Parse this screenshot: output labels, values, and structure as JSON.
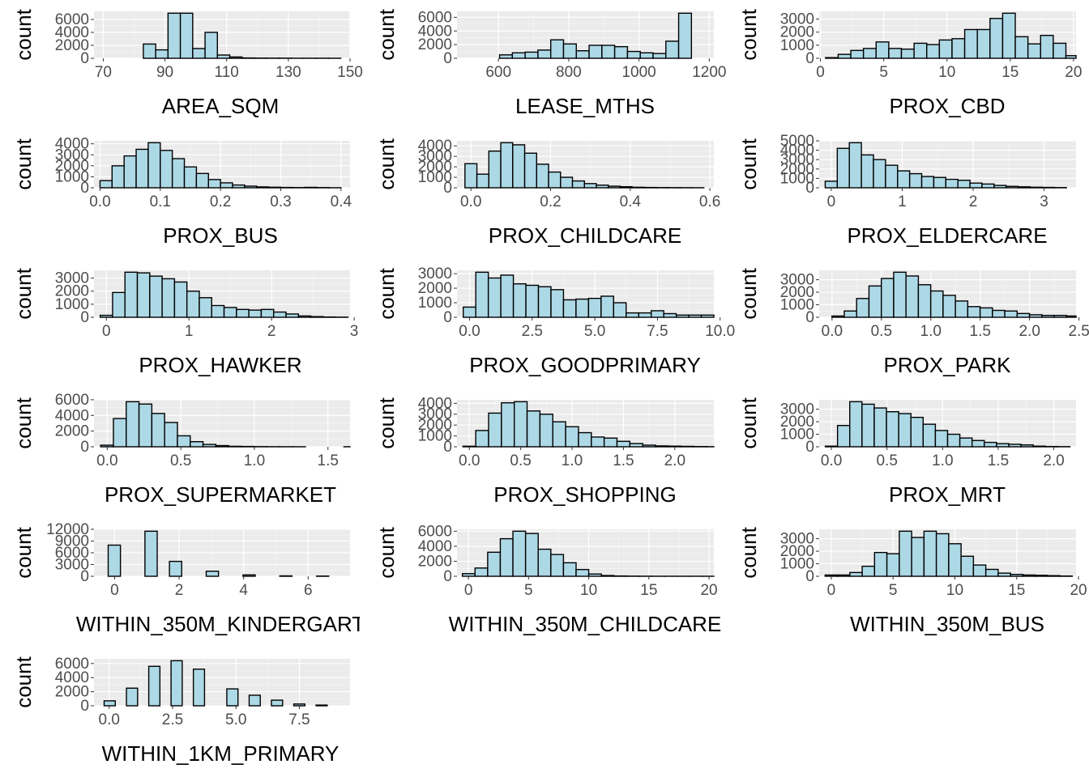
{
  "figure": {
    "background": "#ffffff"
  },
  "style": {
    "panel_bg": "#ebebeb",
    "grid_major": "#ffffff",
    "bar_fill": "#add8e6",
    "bar_stroke": "#000000",
    "tick_color": "#4d4d4d"
  },
  "chart_data": [
    {
      "type": "bar",
      "title": "",
      "xlabel": "AREA_SQM",
      "ylabel": "count",
      "xlim": [
        67,
        150
      ],
      "ylim": [
        0,
        6960
      ],
      "xticks": [
        70,
        90,
        110,
        130,
        150
      ],
      "xtick_labels": [
        "70",
        "90",
        "110",
        "130",
        "150"
      ],
      "yticks": [
        0,
        2000,
        4000,
        6000
      ],
      "ytick_labels": [
        "0",
        "2000",
        "4000",
        "6000"
      ],
      "bin_start": 71,
      "bin_width": 4,
      "values": [
        0,
        0,
        0,
        2200,
        1300,
        6960,
        6960,
        1500,
        4000,
        500,
        200,
        50,
        30,
        20,
        20,
        10,
        10,
        10,
        10
      ]
    },
    {
      "type": "bar",
      "title": "",
      "xlabel": "LEASE_MTHS",
      "ylabel": "count",
      "xlim": [
        482,
        1213
      ],
      "ylim": [
        0,
        6600
      ],
      "xticks": [
        600,
        800,
        1000,
        1200
      ],
      "xtick_labels": [
        "600",
        "800",
        "1000",
        "1200"
      ],
      "yticks": [
        0,
        2000,
        4000,
        6000
      ],
      "ytick_labels": [
        "0",
        "2000",
        "4000",
        "6000"
      ],
      "bin_start": 494,
      "bin_width": 36.4,
      "values": [
        0,
        0,
        0,
        500,
        800,
        900,
        1200,
        2700,
        2100,
        1100,
        1900,
        1900,
        1700,
        1000,
        800,
        700,
        2500,
        6600
      ]
    },
    {
      "type": "bar",
      "title": "",
      "xlabel": "PROX_CBD",
      "ylabel": "count",
      "xlim": [
        -0.1,
        20.2
      ],
      "ylim": [
        0,
        3450
      ],
      "xticks": [
        0,
        5,
        10,
        15,
        20
      ],
      "xtick_labels": [
        "0",
        "5",
        "10",
        "15",
        "20"
      ],
      "yticks": [
        0,
        1000,
        2000,
        3000
      ],
      "ytick_labels": [
        "0",
        "1000",
        "2000",
        "3000"
      ],
      "bin_start": 0.4,
      "bin_width": 1,
      "values": [
        50,
        300,
        600,
        750,
        1250,
        750,
        700,
        1150,
        1050,
        1400,
        1500,
        2200,
        2200,
        3050,
        3450,
        1650,
        1100,
        1750,
        1150,
        200
      ]
    },
    {
      "type": "bar",
      "title": "",
      "xlabel": "PROX_BUS",
      "ylabel": "count",
      "xlim": [
        -0.01,
        0.415
      ],
      "ylim": [
        0,
        4100
      ],
      "xticks": [
        0.0,
        0.1,
        0.2,
        0.3,
        0.4
      ],
      "xtick_labels": [
        "0.0",
        "0.1",
        "0.2",
        "0.3",
        "0.4"
      ],
      "yticks": [
        0,
        1000,
        2000,
        3000,
        4000
      ],
      "ytick_labels": [
        "0",
        "1000",
        "2000",
        "3000",
        "4000"
      ],
      "bin_start": 0.0,
      "bin_width": 0.02,
      "values": [
        650,
        2000,
        2900,
        3500,
        4100,
        3400,
        2650,
        1900,
        1300,
        750,
        450,
        250,
        150,
        80,
        50,
        30,
        20,
        40,
        20,
        5
      ]
    },
    {
      "type": "bar",
      "title": "",
      "xlabel": "PROX_CHILDCARE",
      "ylabel": "count",
      "xlim": [
        -0.035,
        0.61
      ],
      "ylim": [
        0,
        4300
      ],
      "xticks": [
        0.0,
        0.2,
        0.4,
        0.6
      ],
      "xtick_labels": [
        "0.0",
        "0.2",
        "0.4",
        "0.6"
      ],
      "yticks": [
        0,
        1000,
        2000,
        3000,
        4000
      ],
      "ytick_labels": [
        "0",
        "1000",
        "2000",
        "3000",
        "4000"
      ],
      "bin_start": -0.015,
      "bin_width": 0.03,
      "values": [
        2300,
        1300,
        3500,
        4300,
        4100,
        3300,
        2250,
        1500,
        1000,
        650,
        400,
        250,
        150,
        100,
        50,
        30,
        20,
        15,
        10,
        5
      ]
    },
    {
      "type": "bar",
      "title": "",
      "xlabel": "PROX_ELDERCARE",
      "ylabel": "count",
      "xlim": [
        -0.17,
        3.45
      ],
      "ylim": [
        0,
        4800
      ],
      "xticks": [
        0,
        1,
        2,
        3
      ],
      "xtick_labels": [
        "0",
        "1",
        "2",
        "3"
      ],
      "yticks": [
        0,
        1000,
        2000,
        3000,
        4000,
        5000
      ],
      "ytick_labels": [
        "0",
        "1000",
        "2000",
        "3000",
        "4000",
        "5000"
      ],
      "bin_start": -0.085,
      "bin_width": 0.17,
      "values": [
        700,
        4200,
        4800,
        3500,
        3000,
        2400,
        1800,
        1500,
        1200,
        1100,
        900,
        800,
        500,
        400,
        250,
        150,
        100,
        60,
        40,
        20
      ]
    },
    {
      "type": "bar",
      "title": "",
      "xlabel": "PROX_HAWKER",
      "ylabel": "count",
      "xlim": [
        -0.15,
        2.95
      ],
      "ylim": [
        0,
        3450
      ],
      "xticks": [
        0,
        1,
        2,
        3
      ],
      "xtick_labels": [
        "0",
        "1",
        "2",
        "3"
      ],
      "yticks": [
        0,
        1000,
        2000,
        3000
      ],
      "ytick_labels": [
        "0",
        "1000",
        "2000",
        "3000"
      ],
      "bin_start": -0.075,
      "bin_width": 0.15,
      "values": [
        150,
        1900,
        3450,
        3400,
        3150,
        2950,
        2700,
        2000,
        1500,
        900,
        750,
        600,
        550,
        600,
        400,
        250,
        100,
        50,
        20,
        10
      ]
    },
    {
      "type": "bar",
      "title": "",
      "xlabel": "PROX_GOODPRIMARY",
      "ylabel": "count",
      "xlim": [
        -0.5,
        9.75
      ],
      "ylim": [
        0,
        3100
      ],
      "xticks": [
        0.0,
        2.5,
        5.0,
        7.5,
        10.0
      ],
      "xtick_labels": [
        "0.0",
        "2.5",
        "5.0",
        "7.5",
        "10.0"
      ],
      "bin_start": -0.25,
      "bin_width": 0.5,
      "yticks": [
        0,
        1000,
        2000,
        3000
      ],
      "ytick_labels": [
        "0",
        "1000",
        "2000",
        "3000"
      ],
      "values": [
        700,
        3100,
        2700,
        2900,
        2300,
        2200,
        2100,
        1900,
        1200,
        1250,
        1300,
        1450,
        1000,
        300,
        300,
        450,
        250,
        150,
        150,
        150
      ]
    },
    {
      "type": "bar",
      "title": "",
      "xlabel": "PROX_PARK",
      "ylabel": "count",
      "xlim": [
        -0.13,
        2.47
      ],
      "ylim": [
        0,
        3600
      ],
      "xticks": [
        0.0,
        0.5,
        1.0,
        1.5,
        2.0,
        2.5
      ],
      "xtick_labels": [
        "0.0",
        "0.5",
        "1.0",
        "1.5",
        "2.0",
        "2.5"
      ],
      "yticks": [
        0,
        1000,
        2000,
        3000
      ],
      "ytick_labels": [
        "0",
        "1000",
        "2000",
        "3000"
      ],
      "bin_start": -0.001,
      "bin_width": 0.125,
      "values": [
        100,
        500,
        1500,
        2500,
        3100,
        3600,
        3300,
        2600,
        2100,
        1750,
        1300,
        850,
        750,
        550,
        500,
        300,
        200,
        150,
        150,
        100
      ]
    },
    {
      "type": "bar",
      "title": "",
      "xlabel": "PROX_SUPERMARKET",
      "ylabel": "count",
      "xlim": [
        -0.09,
        1.65
      ],
      "ylim": [
        0,
        5750
      ],
      "xticks": [
        0.0,
        0.5,
        1.0,
        1.5
      ],
      "xtick_labels": [
        "0.0",
        "0.5",
        "1.0",
        "1.5"
      ],
      "yticks": [
        0,
        2000,
        4000,
        6000
      ],
      "ytick_labels": [
        "0",
        "2000",
        "4000",
        "6000"
      ],
      "bin_start": -0.045,
      "bin_width": 0.087,
      "values": [
        200,
        3600,
        5750,
        5450,
        4250,
        3100,
        1400,
        650,
        300,
        150,
        60,
        40,
        20,
        10,
        5,
        5,
        0,
        0,
        0,
        5
      ]
    },
    {
      "type": "bar",
      "title": "",
      "xlabel": "PROX_SHOPPING",
      "ylabel": "count",
      "xlim": [
        -0.12,
        2.38
      ],
      "ylim": [
        0,
        4150
      ],
      "xticks": [
        0.0,
        0.5,
        1.0,
        1.5,
        2.0
      ],
      "xtick_labels": [
        "0.0",
        "0.5",
        "1.0",
        "1.5",
        "2.0"
      ],
      "yticks": [
        0,
        1000,
        2000,
        3000,
        4000
      ],
      "ytick_labels": [
        "0",
        "1000",
        "2000",
        "3000",
        "4000"
      ],
      "bin_start": -0.0625,
      "bin_width": 0.125,
      "values": [
        50,
        1500,
        3100,
        4050,
        4150,
        3300,
        3000,
        2300,
        1850,
        1300,
        900,
        800,
        500,
        300,
        150,
        80,
        60,
        40,
        20,
        10
      ]
    },
    {
      "type": "bar",
      "title": "",
      "xlabel": "PROX_MRT",
      "ylabel": "count",
      "xlim": [
        -0.11,
        2.2
      ],
      "ylim": [
        0,
        3600
      ],
      "xticks": [
        0.0,
        0.5,
        1.0,
        1.5,
        2.0
      ],
      "xtick_labels": [
        "0.0",
        "0.5",
        "1.0",
        "1.5",
        "2.0"
      ],
      "yticks": [
        0,
        1000,
        2000,
        3000
      ],
      "ytick_labels": [
        "0",
        "1000",
        "2000",
        "3000"
      ],
      "bin_start": -0.055,
      "bin_width": 0.11,
      "values": [
        50,
        1700,
        3600,
        3400,
        3100,
        2800,
        2650,
        2350,
        1800,
        1300,
        1000,
        700,
        500,
        350,
        250,
        200,
        150,
        50,
        20,
        10
      ]
    },
    {
      "type": "bar",
      "title": "",
      "xlabel": "WITHIN_350M_KINDERGART",
      "ylabel": "count",
      "xlim": [
        -0.64,
        7.3
      ],
      "ylim": [
        0,
        11500
      ],
      "xticks": [
        0,
        2,
        4,
        6
      ],
      "xtick_labels": [
        "0",
        "2",
        "4",
        "6"
      ],
      "yticks": [
        0,
        3000,
        6000,
        9000,
        12000
      ],
      "ytick_labels": [
        "0",
        "3000",
        "6000",
        "9000",
        "12000"
      ],
      "bin_start": -0.2,
      "bin_width": 0.38,
      "values": [
        7950,
        0,
        0,
        11500,
        0,
        3800,
        0,
        0,
        1300,
        0,
        0,
        350,
        0,
        0,
        100,
        0,
        0,
        50,
        0,
        0
      ]
    },
    {
      "type": "bar",
      "title": "",
      "xlabel": "WITHIN_350M_CHILDCARE",
      "ylabel": "count",
      "xlim": [
        -0.95,
        20.4
      ],
      "ylim": [
        0,
        6000
      ],
      "xticks": [
        0,
        5,
        10,
        15,
        20
      ],
      "xtick_labels": [
        "0",
        "5",
        "10",
        "15",
        "20"
      ],
      "yticks": [
        0,
        2000,
        4000,
        6000
      ],
      "ytick_labels": [
        "0",
        "2000",
        "4000",
        "6000"
      ],
      "bin_start": -0.5,
      "bin_width": 1.05,
      "values": [
        350,
        1100,
        3200,
        5000,
        6000,
        5700,
        3600,
        2900,
        1800,
        900,
        300,
        100,
        40,
        20,
        10,
        5,
        5,
        5,
        5,
        5
      ]
    },
    {
      "type": "bar",
      "title": "",
      "xlabel": "WITHIN_350M_BUS",
      "ylabel": "count",
      "xlim": [
        -0.98,
        19.8
      ],
      "ylim": [
        0,
        3600
      ],
      "xticks": [
        0,
        5,
        10,
        15,
        20
      ],
      "xtick_labels": [
        "0",
        "5",
        "10",
        "15",
        "20"
      ],
      "yticks": [
        0,
        1000,
        2000,
        3000
      ],
      "ytick_labels": [
        "0",
        "1000",
        "2000",
        "3000"
      ],
      "bin_start": -0.5,
      "bin_width": 1,
      "values": [
        100,
        100,
        300,
        800,
        1900,
        1800,
        3600,
        3100,
        3600,
        3400,
        2600,
        1600,
        900,
        550,
        250,
        150,
        100,
        80,
        50,
        20
      ]
    },
    {
      "type": "bar",
      "title": "",
      "xlabel": "WITHIN_1KM_PRIMARY",
      "ylabel": "count",
      "xlim": [
        -0.6,
        9.5
      ],
      "ylim": [
        0,
        6400
      ],
      "xticks": [
        0.0,
        2.5,
        5.0,
        7.5
      ],
      "xtick_labels": [
        "0.0",
        "2.5",
        "5.0",
        "7.5"
      ],
      "yticks": [
        0,
        2000,
        4000,
        6000
      ],
      "ytick_labels": [
        "0",
        "2000",
        "4000",
        "6000"
      ],
      "bin_start": -0.2,
      "bin_width": 0.44,
      "values": [
        700,
        0,
        2500,
        0,
        5600,
        0,
        6400,
        0,
        5200,
        0,
        0,
        2400,
        0,
        1500,
        0,
        800,
        0,
        250,
        0,
        100
      ]
    }
  ]
}
